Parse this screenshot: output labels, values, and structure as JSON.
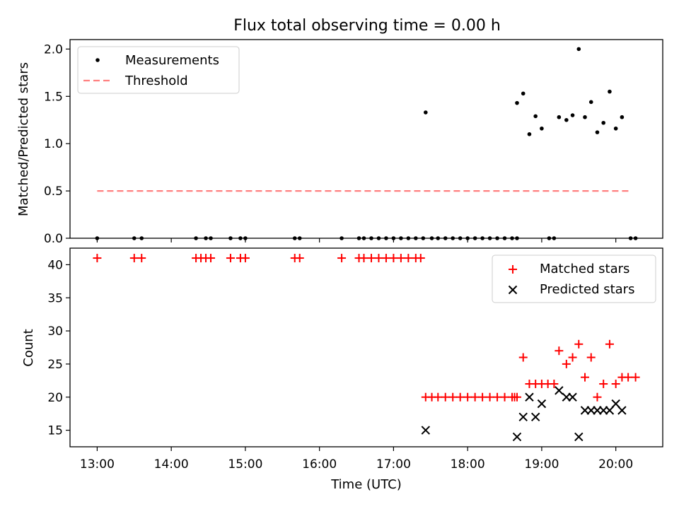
{
  "title": "Flux total observing time = 0.00 h",
  "chart_data": [
    {
      "type": "scatter",
      "panel": "top",
      "ylabel": "Matched/Predicted stars",
      "ylim": [
        0,
        2.1
      ],
      "xlim": [
        "12:38",
        "20:38"
      ],
      "yticks": [
        "0.0",
        "0.5",
        "1.0",
        "1.5",
        "2.0"
      ],
      "legend": {
        "placement": "top-left",
        "entries": [
          "Measurements",
          "Threshold"
        ]
      },
      "series": [
        {
          "name": "Measurements",
          "color": "#000000",
          "marker": "dot",
          "points": [
            [
              "13:00",
              0
            ],
            [
              "13:30",
              0
            ],
            [
              "13:36",
              0
            ],
            [
              "14:20",
              0
            ],
            [
              "14:28",
              0
            ],
            [
              "14:32",
              0
            ],
            [
              "14:48",
              0
            ],
            [
              "14:56",
              0
            ],
            [
              "15:00",
              0
            ],
            [
              "15:40",
              0
            ],
            [
              "15:44",
              0
            ],
            [
              "16:18",
              0
            ],
            [
              "16:32",
              0
            ],
            [
              "16:36",
              0
            ],
            [
              "16:42",
              0
            ],
            [
              "16:48",
              0
            ],
            [
              "16:54",
              0
            ],
            [
              "17:00",
              0
            ],
            [
              "17:06",
              0
            ],
            [
              "17:12",
              0
            ],
            [
              "17:18",
              0
            ],
            [
              "17:24",
              0
            ],
            [
              "17:26",
              1.33
            ],
            [
              "17:31",
              0
            ],
            [
              "17:36",
              0
            ],
            [
              "17:42",
              0
            ],
            [
              "17:48",
              0
            ],
            [
              "17:54",
              0
            ],
            [
              "18:00",
              0
            ],
            [
              "18:06",
              0
            ],
            [
              "18:12",
              0
            ],
            [
              "18:18",
              0
            ],
            [
              "18:24",
              0
            ],
            [
              "18:30",
              0
            ],
            [
              "18:36",
              0
            ],
            [
              "18:40",
              0
            ],
            [
              "18:40",
              1.43
            ],
            [
              "18:45",
              1.53
            ],
            [
              "18:50",
              1.1
            ],
            [
              "18:55",
              1.29
            ],
            [
              "19:00",
              1.16
            ],
            [
              "19:06",
              0
            ],
            [
              "19:10",
              0
            ],
            [
              "19:14",
              1.28
            ],
            [
              "19:20",
              1.25
            ],
            [
              "19:25",
              1.3
            ],
            [
              "19:30",
              2.0
            ],
            [
              "19:35",
              1.28
            ],
            [
              "19:40",
              1.44
            ],
            [
              "19:45",
              1.12
            ],
            [
              "19:50",
              1.22
            ],
            [
              "19:55",
              1.55
            ],
            [
              "20:00",
              1.16
            ],
            [
              "20:05",
              1.28
            ],
            [
              "20:12",
              0
            ],
            [
              "20:16",
              0
            ]
          ]
        },
        {
          "name": "Threshold",
          "color": "#ff7f7f",
          "style": "dashed",
          "x": [
            "13:00",
            "20:12"
          ],
          "y": [
            0.5,
            0.5
          ]
        }
      ]
    },
    {
      "type": "scatter",
      "panel": "bottom",
      "xlabel": "Time (UTC)",
      "ylabel": "Count",
      "ylim": [
        12.5,
        42.5
      ],
      "xlim": [
        "12:38",
        "20:38"
      ],
      "xticks": [
        "13:00",
        "14:00",
        "15:00",
        "16:00",
        "17:00",
        "18:00",
        "19:00",
        "20:00"
      ],
      "yticks": [
        "15",
        "20",
        "25",
        "30",
        "35",
        "40"
      ],
      "legend": {
        "placement": "top-right",
        "entries": [
          "Matched stars",
          "Predicted stars"
        ]
      },
      "series": [
        {
          "name": "Matched stars",
          "color": "#ff0000",
          "marker": "plus",
          "points": [
            [
              "13:00",
              41
            ],
            [
              "13:30",
              41
            ],
            [
              "13:36",
              41
            ],
            [
              "14:20",
              41
            ],
            [
              "14:24",
              41
            ],
            [
              "14:28",
              41
            ],
            [
              "14:32",
              41
            ],
            [
              "14:48",
              41
            ],
            [
              "14:56",
              41
            ],
            [
              "15:00",
              41
            ],
            [
              "15:40",
              41
            ],
            [
              "15:44",
              41
            ],
            [
              "16:18",
              41
            ],
            [
              "16:32",
              41
            ],
            [
              "16:36",
              41
            ],
            [
              "16:42",
              41
            ],
            [
              "16:48",
              41
            ],
            [
              "16:54",
              41
            ],
            [
              "17:00",
              41
            ],
            [
              "17:06",
              41
            ],
            [
              "17:12",
              41
            ],
            [
              "17:18",
              41
            ],
            [
              "17:22",
              41
            ],
            [
              "17:26",
              20
            ],
            [
              "17:31",
              20
            ],
            [
              "17:36",
              20
            ],
            [
              "17:42",
              20
            ],
            [
              "17:48",
              20
            ],
            [
              "17:54",
              20
            ],
            [
              "18:00",
              20
            ],
            [
              "18:06",
              20
            ],
            [
              "18:12",
              20
            ],
            [
              "18:18",
              20
            ],
            [
              "18:24",
              20
            ],
            [
              "18:30",
              20
            ],
            [
              "18:36",
              20
            ],
            [
              "18:38",
              20
            ],
            [
              "18:40",
              20
            ],
            [
              "18:45",
              26
            ],
            [
              "18:50",
              22
            ],
            [
              "18:55",
              22
            ],
            [
              "19:00",
              22
            ],
            [
              "19:05",
              22
            ],
            [
              "19:10",
              22
            ],
            [
              "19:14",
              27
            ],
            [
              "19:20",
              25
            ],
            [
              "19:25",
              26
            ],
            [
              "19:30",
              28
            ],
            [
              "19:35",
              23
            ],
            [
              "19:40",
              26
            ],
            [
              "19:45",
              20
            ],
            [
              "19:50",
              22
            ],
            [
              "19:55",
              28
            ],
            [
              "20:00",
              22
            ],
            [
              "20:05",
              23
            ],
            [
              "20:10",
              23
            ],
            [
              "20:16",
              23
            ]
          ]
        },
        {
          "name": "Predicted stars",
          "color": "#000000",
          "marker": "x",
          "points": [
            [
              "17:26",
              15
            ],
            [
              "18:40",
              14
            ],
            [
              "18:45",
              17
            ],
            [
              "18:50",
              20
            ],
            [
              "18:55",
              17
            ],
            [
              "19:00",
              19
            ],
            [
              "19:14",
              21
            ],
            [
              "19:20",
              20
            ],
            [
              "19:25",
              20
            ],
            [
              "19:30",
              14
            ],
            [
              "19:35",
              18
            ],
            [
              "19:40",
              18
            ],
            [
              "19:45",
              18
            ],
            [
              "19:50",
              18
            ],
            [
              "19:55",
              18
            ],
            [
              "20:00",
              19
            ],
            [
              "20:05",
              18
            ]
          ]
        }
      ]
    }
  ]
}
